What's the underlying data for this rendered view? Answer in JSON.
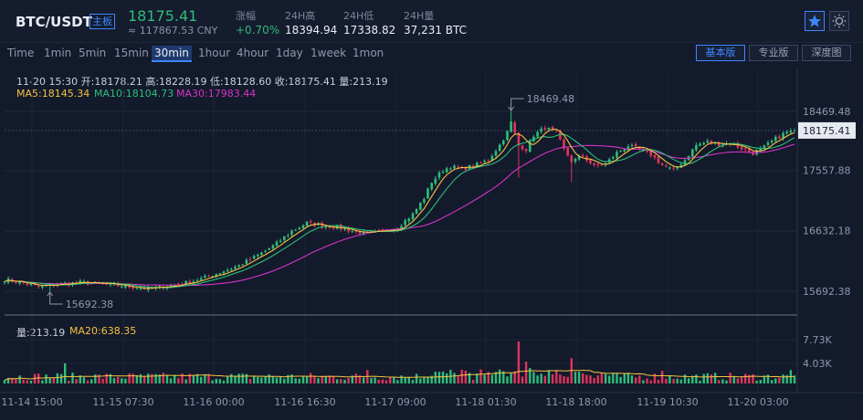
{
  "header": {
    "symbol": "BTC/USDT",
    "board": "主板",
    "price": "18175.41",
    "cny": "≈ 117867.53 CNY",
    "stats": [
      {
        "label": "涨幅",
        "value": "+0.70%"
      },
      {
        "label": "24H高",
        "value": "18394.94"
      },
      {
        "label": "24H低",
        "value": "17338.82"
      },
      {
        "label": "24H量",
        "value": "37,231 BTC"
      }
    ],
    "icons": [
      "star-icon",
      "theme-sun-icon"
    ]
  },
  "toolbar": {
    "intervals": [
      "Time",
      "1min",
      "5min",
      "15min",
      "30min",
      "1hour",
      "4hour",
      "1day",
      "1week",
      "1mon"
    ],
    "active_interval": "30min",
    "views": [
      "基本版",
      "专业版",
      "深度图"
    ],
    "active_view": "基本版"
  },
  "info": {
    "line1": "11-20 15:30  开:18178.21  高:18228.19  低:18128.60  收:18175.41  量:213.19",
    "ma5": "MA5:18145.34",
    "ma10": "MA10:18104.73",
    "ma30": "MA30:17983.44"
  },
  "volume_legend": {
    "vol": "量:213.19",
    "ma20": "MA20:638.35"
  },
  "colors": {
    "up": "#2ebd7a",
    "down": "#e0345c",
    "ma5": "#f5c242",
    "ma10": "#2ebd7a",
    "ma30": "#d534c8"
  },
  "chart_data": {
    "type": "candlestick",
    "price_axis_ticks": [
      "18469.48",
      "17557.88",
      "16632.18",
      "15692.38"
    ],
    "current_price_label": "18175.41",
    "high_marker": "18469.48",
    "low_marker": "15692.38",
    "volume_axis_ticks": [
      "7.73K",
      "4.03K"
    ],
    "x_tick_labels": [
      "11-14 15:00",
      "11-15 07:30",
      "11-16 00:00",
      "11-16 16:30",
      "11-17 09:00",
      "11-18 01:30",
      "11-18 18:00",
      "11-19 10:30",
      "11-20 03:00"
    ],
    "price_anchors": [
      [
        0,
        15870
      ],
      [
        4,
        15830
      ],
      [
        9,
        15760
      ],
      [
        14,
        15800
      ],
      [
        20,
        15830
      ],
      [
        26,
        15800
      ],
      [
        32,
        15770
      ],
      [
        38,
        15730
      ],
      [
        44,
        15780
      ],
      [
        50,
        15850
      ],
      [
        56,
        15960
      ],
      [
        62,
        16090
      ],
      [
        68,
        16280
      ],
      [
        72,
        16430
      ],
      [
        76,
        16620
      ],
      [
        80,
        16750
      ],
      [
        84,
        16700
      ],
      [
        88,
        16680
      ],
      [
        92,
        16620
      ],
      [
        96,
        16580
      ],
      [
        100,
        16620
      ],
      [
        104,
        16680
      ],
      [
        108,
        16880
      ],
      [
        111,
        17130
      ],
      [
        113,
        17380
      ],
      [
        116,
        17560
      ],
      [
        118,
        17620
      ],
      [
        121,
        17580
      ],
      [
        125,
        17650
      ],
      [
        128,
        17720
      ],
      [
        131,
        17950
      ],
      [
        133,
        18150
      ],
      [
        134,
        18300
      ],
      [
        136,
        17950
      ],
      [
        138,
        17880
      ],
      [
        140,
        18100
      ],
      [
        143,
        18220
      ],
      [
        146,
        18140
      ],
      [
        148,
        17880
      ],
      [
        150,
        17700
      ],
      [
        153,
        17780
      ],
      [
        156,
        17620
      ],
      [
        159,
        17660
      ],
      [
        162,
        17830
      ],
      [
        165,
        17940
      ],
      [
        168,
        17880
      ],
      [
        171,
        17800
      ],
      [
        174,
        17640
      ],
      [
        177,
        17560
      ],
      [
        180,
        17720
      ],
      [
        183,
        17950
      ],
      [
        186,
        18000
      ],
      [
        189,
        17960
      ],
      [
        192,
        17980
      ],
      [
        195,
        17900
      ],
      [
        198,
        17820
      ],
      [
        201,
        17920
      ],
      [
        204,
        18050
      ],
      [
        207,
        18150
      ],
      [
        209,
        18175
      ]
    ],
    "volume_spikes": [
      [
        16,
        0.48
      ],
      [
        36,
        0.22
      ],
      [
        96,
        0.32
      ],
      [
        114,
        0.28
      ],
      [
        117,
        0.24
      ],
      [
        119,
        0.25
      ],
      [
        131,
        0.33
      ],
      [
        136,
        1.0
      ],
      [
        138,
        0.52
      ],
      [
        150,
        0.6
      ],
      [
        152,
        0.28
      ],
      [
        174,
        0.3
      ],
      [
        208,
        0.32
      ]
    ]
  }
}
